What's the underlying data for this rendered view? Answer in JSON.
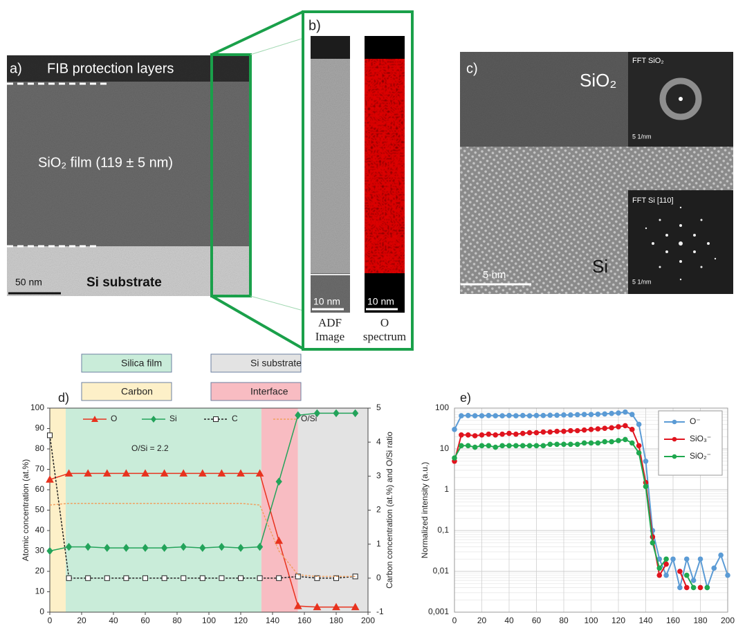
{
  "panels": {
    "a": {
      "label": "a)",
      "top_label": "FIB protection layers",
      "film_label": "SiO₂ film  (119 ± 5 nm)",
      "scale": "50 nm",
      "substrate_label": "Si substrate"
    },
    "b": {
      "label": "b)",
      "adf_scale": "10 nm",
      "o_scale": "10 nm",
      "adf_caption": [
        "ADF",
        "Image"
      ],
      "o_caption": [
        "O",
        "spectrum"
      ]
    },
    "c": {
      "label": "c)",
      "sio2_label": "SiO₂",
      "fft_sio2": "FFT SiO₂",
      "fft_sio2_scale": "5 1/nm",
      "fft_si": "FFT  Si [110]",
      "fft_si_scale": "5 1/nm",
      "scale": "5 nm",
      "si_label": "Si"
    }
  },
  "chart_data": [
    {
      "type": "line",
      "panel_label": "d)",
      "x_label": "Depth (nm)",
      "y_label": "Atomic concentration (at.%)",
      "y2_label": "Carbon  concentration (at.%) and O/Si ratio",
      "annotation": "O/Si = 2.2",
      "xlim": [
        0,
        200
      ],
      "xticks": [
        0,
        20,
        40,
        60,
        80,
        100,
        120,
        140,
        160,
        180,
        200
      ],
      "ylim": [
        0,
        100
      ],
      "yticks": [
        0,
        10,
        20,
        30,
        40,
        50,
        60,
        70,
        80,
        90,
        100
      ],
      "y2lim": [
        -1,
        5
      ],
      "y2ticks": [
        -1,
        0,
        1,
        2,
        3,
        4,
        5
      ],
      "regions": [
        {
          "name": "Carbon",
          "range": [
            0,
            10
          ],
          "color": "#fdf0c8"
        },
        {
          "name": "Silica film",
          "range": [
            10,
            133
          ],
          "color": "#c9ecd9"
        },
        {
          "name": "Interface",
          "range": [
            133,
            156
          ],
          "color": "#f8bcc2"
        },
        {
          "name": "Si substrate",
          "range": [
            156,
            200
          ],
          "color": "#e3e3e3"
        }
      ],
      "legend": "top",
      "x": [
        0,
        12,
        24,
        36,
        48,
        60,
        72,
        84,
        96,
        108,
        120,
        132,
        144,
        156,
        168,
        180,
        192
      ],
      "series": [
        {
          "name": "O",
          "color": "#e8321e",
          "marker": "triangle",
          "dash": false,
          "values": [
            65,
            68,
            68,
            68,
            68,
            68,
            68,
            68,
            68,
            68,
            68,
            68,
            35,
            3,
            2.5,
            2.5,
            2.5
          ]
        },
        {
          "name": "Si",
          "color": "#23a35a",
          "marker": "diamond",
          "dash": false,
          "values": [
            30,
            32,
            32,
            31.5,
            31.5,
            31.5,
            31.5,
            32,
            31.5,
            32,
            31.5,
            32,
            64,
            96.5,
            97.5,
            97.5,
            97.5
          ]
        },
        {
          "name": "C",
          "color": "#222222",
          "marker": "square",
          "dash": true,
          "axis": "y2",
          "values": [
            4.2,
            0,
            0,
            0,
            0,
            0,
            0,
            0,
            0,
            0,
            0,
            0,
            0,
            0.05,
            0,
            0,
            0.05
          ]
        },
        {
          "name": "O/Si",
          "color": "#f0a060",
          "marker": "none",
          "dash": true,
          "axis": "y2",
          "values": [
            2.15,
            2.2,
            2.2,
            2.2,
            2.2,
            2.2,
            2.2,
            2.2,
            2.2,
            2.2,
            2.2,
            2.15,
            0.8,
            0.1,
            0.05,
            0.05,
            0.05
          ]
        }
      ]
    },
    {
      "type": "line",
      "panel_label": "e)",
      "x_label": "Depth (nm)",
      "y_label": "Normalized intensity (a.u.)",
      "log_y": true,
      "xlim": [
        0,
        200
      ],
      "xticks": [
        0,
        20,
        40,
        60,
        80,
        100,
        120,
        140,
        160,
        180,
        200
      ],
      "ylim": [
        0.001,
        100
      ],
      "yticks": [
        {
          "value": 0.001,
          "label": "0,001"
        },
        {
          "value": 0.01,
          "label": "0,01"
        },
        {
          "value": 0.1,
          "label": "0,1"
        },
        1,
        10,
        100
      ],
      "grid": true,
      "legend": "upper right",
      "x": [
        0,
        5,
        10,
        15,
        20,
        25,
        30,
        35,
        40,
        45,
        50,
        55,
        60,
        65,
        70,
        75,
        80,
        85,
        90,
        95,
        100,
        105,
        110,
        115,
        120,
        125,
        130,
        135,
        140,
        145,
        150,
        155,
        160,
        165,
        170,
        175,
        180,
        185,
        190,
        195,
        200
      ],
      "series": [
        {
          "name": "O⁻",
          "color": "#5b9bd5",
          "marker": "circle",
          "dash": false,
          "values": [
            30,
            65,
            66,
            65,
            65,
            66,
            65,
            65,
            66,
            65,
            66,
            65,
            66,
            66,
            67,
            67,
            68,
            68,
            69,
            70,
            70,
            71,
            72,
            74,
            76,
            80,
            70,
            40,
            5,
            0.1,
            0.02,
            0.008,
            0.02,
            0.004,
            0.02,
            0.006,
            0.02,
            0.004,
            0.012,
            0.025,
            0.008
          ]
        },
        {
          "name": "SiO₃⁻",
          "color": "#e0141e",
          "marker": "circle",
          "dash": false,
          "values": [
            5,
            22,
            22,
            21,
            22,
            23,
            22,
            23,
            24,
            23,
            24,
            25,
            25,
            26,
            26,
            27,
            27,
            28,
            28,
            29,
            30,
            31,
            32,
            33,
            35,
            37,
            30,
            12,
            1.5,
            0.07,
            0.008,
            0.015,
            null,
            0.01,
            0.004,
            null,
            0.004,
            null,
            null,
            null,
            null
          ]
        },
        {
          "name": "SiO₂⁻",
          "color": "#1fa84f",
          "marker": "circle",
          "dash": false,
          "values": [
            6,
            12,
            12,
            11,
            12,
            12,
            11,
            12,
            12,
            12,
            12,
            12,
            12,
            12,
            13,
            13,
            13,
            13,
            13,
            14,
            14,
            14,
            15,
            15,
            16,
            17,
            14,
            8,
            1.2,
            0.05,
            0.012,
            0.02,
            null,
            null,
            0.008,
            0.004,
            null,
            0.004,
            null,
            null,
            null
          ]
        }
      ]
    }
  ]
}
